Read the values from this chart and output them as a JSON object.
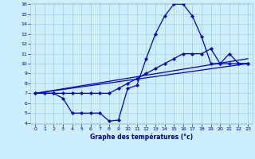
{
  "xlabel": "Graphe des températures (°c)",
  "x_ticks": [
    0,
    1,
    2,
    3,
    4,
    5,
    6,
    7,
    8,
    9,
    10,
    11,
    12,
    13,
    14,
    15,
    16,
    17,
    18,
    19,
    20,
    21,
    22,
    23
  ],
  "ylim": [
    4,
    16
  ],
  "xlim": [
    -0.5,
    23.5
  ],
  "y_ticks": [
    4,
    5,
    6,
    7,
    8,
    9,
    10,
    11,
    12,
    13,
    14,
    15,
    16
  ],
  "background_color": "#cceeff",
  "grid_color": "#aacccc",
  "line_color": "#0000cc",
  "line1_x": [
    0,
    1,
    2,
    3,
    4,
    5,
    6,
    7,
    8,
    9,
    10,
    11,
    12,
    13,
    14,
    15,
    16,
    17,
    18,
    19,
    20,
    21,
    22,
    23
  ],
  "line1_y": [
    7,
    7,
    7,
    6.5,
    5,
    5,
    5,
    5,
    4.2,
    4.3,
    7.5,
    7.8,
    10.5,
    13,
    14.8,
    16,
    16,
    14.8,
    12.7,
    10,
    10,
    11,
    10,
    10
  ],
  "line2_x": [
    0,
    1,
    2,
    3,
    4,
    5,
    6,
    7,
    8,
    9,
    10,
    11,
    12,
    13,
    14,
    15,
    16,
    17,
    18,
    19,
    20,
    21,
    22,
    23
  ],
  "line2_y": [
    7,
    7,
    7,
    7,
    7,
    7,
    7,
    7,
    7,
    7.5,
    8,
    8.5,
    9,
    9.5,
    10,
    10.5,
    11,
    11,
    11,
    11.5,
    10,
    10,
    10,
    10
  ],
  "line3_x": [
    0,
    23
  ],
  "line3_y": [
    7,
    10
  ],
  "line4_x": [
    0,
    23
  ],
  "line4_y": [
    7,
    10.5
  ],
  "marker": "D",
  "marker_size": 2,
  "line_width": 0.9
}
